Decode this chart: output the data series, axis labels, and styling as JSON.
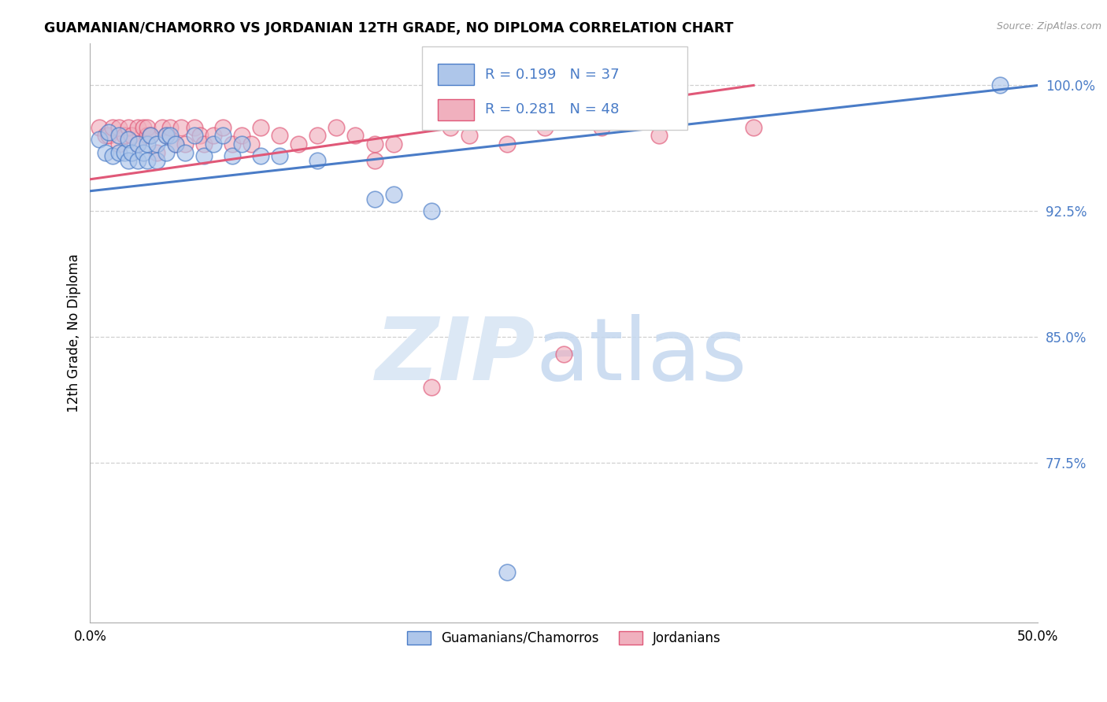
{
  "title": "GUAMANIAN/CHAMORRO VS JORDANIAN 12TH GRADE, NO DIPLOMA CORRELATION CHART",
  "source": "Source: ZipAtlas.com",
  "ylabel": "12th Grade, No Diploma",
  "ytick_labels": [
    "100.0%",
    "92.5%",
    "85.0%",
    "77.5%"
  ],
  "ytick_values": [
    1.0,
    0.925,
    0.85,
    0.775
  ],
  "xlim": [
    0.0,
    0.5
  ],
  "ylim": [
    0.68,
    1.025
  ],
  "legend_blue_label": "Guamanians/Chamorros",
  "legend_pink_label": "Jordanians",
  "blue_color": "#aec6ea",
  "pink_color": "#f0b0be",
  "line_blue_color": "#4a7cc7",
  "line_pink_color": "#e05878",
  "blue_scatter_x": [
    0.005,
    0.008,
    0.01,
    0.012,
    0.015,
    0.015,
    0.018,
    0.02,
    0.02,
    0.022,
    0.025,
    0.025,
    0.028,
    0.03,
    0.03,
    0.032,
    0.035,
    0.035,
    0.04,
    0.04,
    0.042,
    0.045,
    0.05,
    0.055,
    0.06,
    0.065,
    0.07,
    0.075,
    0.08,
    0.09,
    0.1,
    0.12,
    0.15,
    0.16,
    0.18,
    0.22,
    0.48
  ],
  "blue_scatter_y": [
    0.968,
    0.96,
    0.972,
    0.958,
    0.97,
    0.96,
    0.96,
    0.968,
    0.955,
    0.96,
    0.965,
    0.955,
    0.96,
    0.965,
    0.955,
    0.97,
    0.965,
    0.955,
    0.97,
    0.96,
    0.97,
    0.965,
    0.96,
    0.97,
    0.958,
    0.965,
    0.97,
    0.958,
    0.965,
    0.958,
    0.958,
    0.955,
    0.932,
    0.935,
    0.925,
    0.71,
    1.0
  ],
  "pink_scatter_x": [
    0.005,
    0.008,
    0.01,
    0.012,
    0.015,
    0.015,
    0.018,
    0.02,
    0.022,
    0.025,
    0.025,
    0.028,
    0.03,
    0.03,
    0.032,
    0.035,
    0.038,
    0.04,
    0.042,
    0.045,
    0.048,
    0.05,
    0.055,
    0.058,
    0.06,
    0.065,
    0.07,
    0.075,
    0.08,
    0.085,
    0.09,
    0.1,
    0.11,
    0.12,
    0.13,
    0.14,
    0.15,
    0.15,
    0.16,
    0.18,
    0.19,
    0.2,
    0.22,
    0.24,
    0.25,
    0.27,
    0.3,
    0.35
  ],
  "pink_scatter_y": [
    0.975,
    0.97,
    0.97,
    0.975,
    0.965,
    0.975,
    0.97,
    0.975,
    0.97,
    0.975,
    0.965,
    0.975,
    0.97,
    0.975,
    0.97,
    0.96,
    0.975,
    0.97,
    0.975,
    0.965,
    0.975,
    0.965,
    0.975,
    0.97,
    0.965,
    0.97,
    0.975,
    0.965,
    0.97,
    0.965,
    0.975,
    0.97,
    0.965,
    0.97,
    0.975,
    0.97,
    0.965,
    0.955,
    0.965,
    0.82,
    0.975,
    0.97,
    0.965,
    0.975,
    0.84,
    0.975,
    0.97,
    0.975
  ],
  "blue_line_x": [
    0.0,
    0.5
  ],
  "blue_line_y": [
    0.937,
    1.0
  ],
  "pink_line_x": [
    0.0,
    0.35
  ],
  "pink_line_y": [
    0.944,
    1.0
  ]
}
